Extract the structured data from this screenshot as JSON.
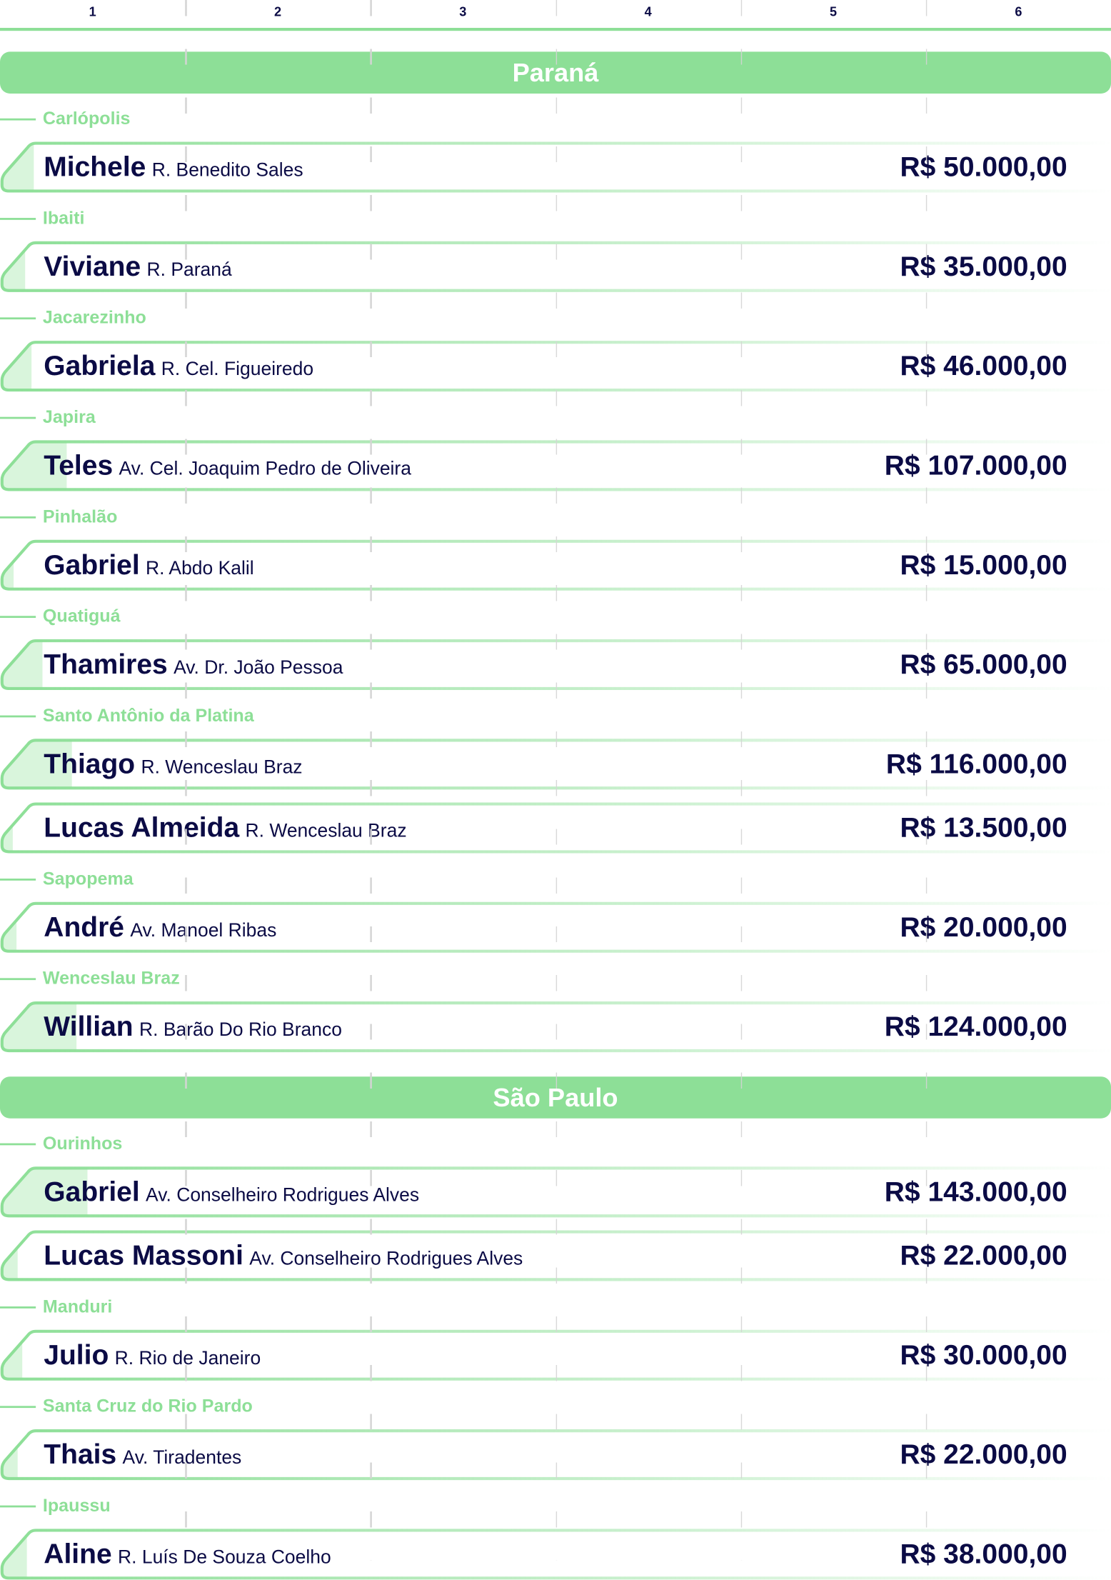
{
  "columns": [
    "1",
    "2",
    "3",
    "4",
    "5",
    "6"
  ],
  "colors": {
    "accent": "#8ddf97",
    "fill": "#d9f5dc",
    "text": "#0b0b45"
  },
  "sections": [
    {
      "title": "Paraná",
      "cities": [
        {
          "name": "Carlópolis",
          "people": [
            {
              "name": "Michele",
              "street": "R. Benedito Sales",
              "amount": "R$ 50.000,00",
              "value": 50000
            }
          ]
        },
        {
          "name": "Ibaiti",
          "people": [
            {
              "name": "Viviane",
              "street": "R. Paraná",
              "amount": "R$ 35.000,00",
              "value": 35000
            }
          ]
        },
        {
          "name": "Jacarezinho",
          "people": [
            {
              "name": "Gabriela",
              "street": "R. Cel. Figueiredo",
              "amount": "R$ 46.000,00",
              "value": 46000
            }
          ]
        },
        {
          "name": "Japira",
          "people": [
            {
              "name": "Teles",
              "street": "Av. Cel. Joaquim Pedro de Oliveira",
              "amount": "R$ 107.000,00",
              "value": 107000
            }
          ]
        },
        {
          "name": "Pinhalão",
          "people": [
            {
              "name": "Gabriel",
              "street": "R. Abdo Kalil",
              "amount": "R$ 15.000,00",
              "value": 15000
            }
          ]
        },
        {
          "name": "Quatiguá",
          "people": [
            {
              "name": "Thamires",
              "street": "Av. Dr. João Pessoa",
              "amount": "R$ 65.000,00",
              "value": 65000
            }
          ]
        },
        {
          "name": "Santo Antônio da Platina",
          "people": [
            {
              "name": "Thiago",
              "street": "R. Wenceslau Braz",
              "amount": "R$ 116.000,00",
              "value": 116000
            },
            {
              "name": "Lucas Almeida",
              "street": "R. Wenceslau Braz",
              "amount": "R$ 13.500,00",
              "value": 13500
            }
          ]
        },
        {
          "name": "Sapopema",
          "people": [
            {
              "name": "André",
              "street": "Av. Manoel Ribas",
              "amount": "R$ 20.000,00",
              "value": 20000
            }
          ]
        },
        {
          "name": "Wenceslau Braz",
          "people": [
            {
              "name": "Willian",
              "street": "R. Barão Do Rio Branco",
              "amount": "R$ 124.000,00",
              "value": 124000
            }
          ]
        }
      ]
    },
    {
      "title": "São Paulo",
      "cities": [
        {
          "name": "Ourinhos",
          "people": [
            {
              "name": "Gabriel",
              "street": "Av. Conselheiro Rodrigues Alves",
              "amount": "R$ 143.000,00",
              "value": 143000
            },
            {
              "name": "Lucas Massoni",
              "street": "Av. Conselheiro Rodrigues Alves",
              "amount": "R$ 22.000,00",
              "value": 22000
            }
          ]
        },
        {
          "name": "Manduri",
          "people": [
            {
              "name": "Julio",
              "street": "R. Rio de Janeiro",
              "amount": "R$ 30.000,00",
              "value": 30000
            }
          ]
        },
        {
          "name": "Santa Cruz do Rio Pardo",
          "people": [
            {
              "name": "Thais",
              "street": "Av. Tiradentes",
              "amount": "R$ 22.000,00",
              "value": 22000
            }
          ]
        },
        {
          "name": "Ipaussu",
          "people": [
            {
              "name": "Aline",
              "street": "R. Luís De Souza Coelho",
              "amount": "R$ 38.000,00",
              "value": 38000
            }
          ]
        }
      ]
    }
  ]
}
